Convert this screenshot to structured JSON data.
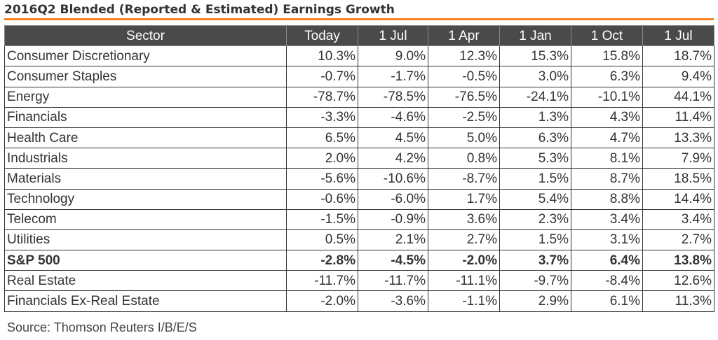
{
  "title": "2016Q2 Blended (Reported & Estimated) Earnings Growth",
  "columns": [
    "Sector",
    "Today",
    "1 Jul",
    "1 Apr",
    "1 Jan",
    "1 Oct",
    "1 Jul"
  ],
  "rows": [
    {
      "sector": "Consumer Discretionary",
      "values": [
        "10.3%",
        "9.0%",
        "12.3%",
        "15.3%",
        "15.8%",
        "18.7%"
      ]
    },
    {
      "sector": "Consumer Staples",
      "values": [
        "-0.7%",
        "-1.7%",
        "-0.5%",
        "3.0%",
        "6.3%",
        "9.4%"
      ]
    },
    {
      "sector": "Energy",
      "values": [
        "-78.7%",
        "-78.5%",
        "-76.5%",
        "-24.1%",
        "-10.1%",
        "44.1%"
      ]
    },
    {
      "sector": "Financials",
      "values": [
        "-3.3%",
        "-4.6%",
        "-2.5%",
        "1.3%",
        "4.3%",
        "11.4%"
      ]
    },
    {
      "sector": "Health Care",
      "values": [
        "6.5%",
        "4.5%",
        "5.0%",
        "6.3%",
        "4.7%",
        "13.3%"
      ]
    },
    {
      "sector": "Industrials",
      "values": [
        "2.0%",
        "4.2%",
        "0.8%",
        "5.3%",
        "8.1%",
        "7.9%"
      ]
    },
    {
      "sector": "Materials",
      "values": [
        "-5.6%",
        "-10.6%",
        "-8.7%",
        "1.5%",
        "8.7%",
        "18.5%"
      ]
    },
    {
      "sector": "Technology",
      "values": [
        "-0.6%",
        "-6.0%",
        "1.7%",
        "5.4%",
        "8.8%",
        "14.4%"
      ]
    },
    {
      "sector": "Telecom",
      "values": [
        "-1.5%",
        "-0.9%",
        "3.6%",
        "2.3%",
        "3.4%",
        "3.4%"
      ]
    },
    {
      "sector": "Utilities",
      "values": [
        "0.5%",
        "2.1%",
        "2.7%",
        "1.5%",
        "3.1%",
        "2.7%"
      ]
    },
    {
      "sector": "S&P 500",
      "values": [
        "-2.8%",
        "-4.5%",
        "-2.0%",
        "3.7%",
        "6.4%",
        "13.8%"
      ],
      "bold": true
    },
    {
      "sector": "Real Estate",
      "values": [
        "-11.7%",
        "-11.7%",
        "-11.1%",
        "-9.7%",
        "-8.4%",
        "12.6%"
      ]
    },
    {
      "sector": "Financials Ex-Real Estate",
      "values": [
        "-2.0%",
        "-3.6%",
        "-1.1%",
        "2.9%",
        "6.1%",
        "11.3%"
      ]
    }
  ],
  "source": "Source: Thomson Reuters I/B/E/S",
  "colors": {
    "accent": "#f58220",
    "header_bg": "#4a4a4a"
  }
}
